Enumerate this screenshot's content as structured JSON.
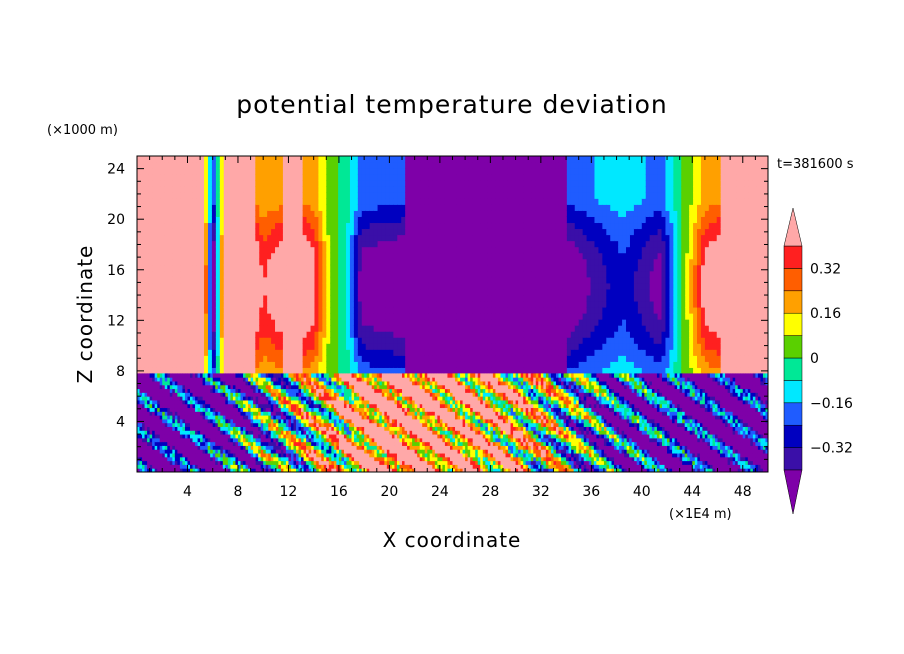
{
  "chart_data": {
    "type": "heatmap",
    "title": "potential temperature deviation",
    "xlabel": "X coordinate",
    "ylabel": "Z coordinate",
    "x_unit": "(×1E4 m)",
    "y_unit": "(×1000 m)",
    "time_label": "t=381600 s",
    "xlim": [
      0,
      50
    ],
    "ylim": [
      0,
      25
    ],
    "x_ticks": [
      "4",
      "8",
      "12",
      "16",
      "20",
      "24",
      "28",
      "32",
      "36",
      "40",
      "44",
      "48"
    ],
    "y_ticks": [
      "4",
      "8",
      "12",
      "16",
      "20",
      "24"
    ],
    "colorbar": {
      "levels": [
        -0.4,
        -0.32,
        -0.24,
        -0.16,
        -0.08,
        0,
        0.08,
        0.16,
        0.24,
        0.32,
        0.4
      ],
      "tick_labels": [
        "0.32",
        "0.16",
        "0",
        "−0.16",
        "−0.32"
      ],
      "tick_values": [
        0.32,
        0.16,
        0,
        -0.16,
        -0.32
      ],
      "colors": [
        "#7e00a8",
        "#3a0fa8",
        "#0000c0",
        "#1f5cff",
        "#00e8ff",
        "#00e896",
        "#5ad000",
        "#ffff00",
        "#ffa000",
        "#ff5e00",
        "#ff2020",
        "#ffa8a8"
      ]
    },
    "upper_layer": {
      "z_range": [
        7.8,
        25
      ],
      "columns": [
        {
          "x": 2.5,
          "value": 0.45
        },
        {
          "x": 5.3,
          "value": 0.4
        },
        {
          "x": 6.0,
          "value": -0.45
        },
        {
          "x": 7.0,
          "value": 0.4
        },
        {
          "x": 9.0,
          "value": 0.45
        },
        {
          "x": 10.0,
          "value": 0.3
        },
        {
          "x": 12.5,
          "value": 0.45
        },
        {
          "x": 14.0,
          "value": 0.35
        },
        {
          "x": 15.3,
          "value": 0.05
        },
        {
          "x": 16.8,
          "value": -0.1
        },
        {
          "x": 17.8,
          "value": -0.35
        },
        {
          "x": 25.0,
          "value": -0.45
        },
        {
          "x": 33.0,
          "value": -0.45
        },
        {
          "x": 36.0,
          "value": -0.3
        },
        {
          "x": 38.5,
          "value": -0.2
        },
        {
          "x": 41.5,
          "value": -0.35
        },
        {
          "x": 43.5,
          "value": 0.05
        },
        {
          "x": 45.0,
          "value": 0.35
        },
        {
          "x": 47.5,
          "value": 0.45
        }
      ]
    },
    "lower_layer": {
      "z_range": [
        0,
        7.8
      ],
      "description_values": [
        {
          "x": 5,
          "value": -0.45
        },
        {
          "x": 13,
          "value": 0.0
        },
        {
          "x": 20,
          "value": 0.45
        },
        {
          "x": 30,
          "value": 0.2
        },
        {
          "x": 38,
          "value": -0.3
        },
        {
          "x": 46,
          "value": -0.45
        }
      ]
    }
  }
}
